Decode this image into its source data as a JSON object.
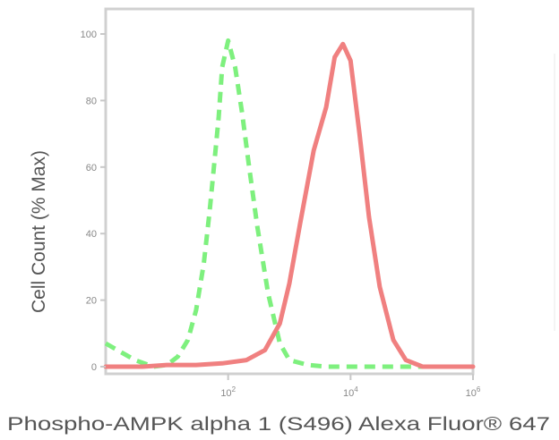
{
  "chart_data": {
    "type": "line",
    "title": "",
    "xlabel": "Phospho-AMPK alpha 1 (S496) Alexa Fluor® 647",
    "ylabel": "Cell Count (% Max)",
    "x_scale": "log",
    "xlim": [
      1,
      1000000
    ],
    "x_tick_labels": [
      "10^2",
      "10^4",
      "10^6"
    ],
    "x_ticks": [
      100,
      10000,
      1000000
    ],
    "ylim": [
      0,
      100
    ],
    "y_ticks": [
      0,
      20,
      40,
      60,
      80,
      100
    ],
    "y_tick_labels": [
      "0",
      "20",
      "40",
      "60",
      "80",
      "100"
    ],
    "grid": false,
    "series": [
      {
        "style": "dashed",
        "color": "#7ef07e",
        "x": [
          1,
          3,
          6,
          10,
          15,
          22,
          30,
          40,
          50,
          60,
          70,
          80,
          100,
          130,
          170,
          220,
          300,
          450,
          700,
          1000,
          2000,
          4000,
          1000000
        ],
        "y": [
          7,
          2,
          0,
          0.5,
          3,
          8,
          17,
          31,
          47,
          62,
          75,
          90,
          98,
          90,
          76,
          60,
          42,
          22,
          7,
          2,
          0.5,
          0,
          0
        ]
      },
      {
        "style": "solid",
        "color": "#f08080",
        "x": [
          1,
          4,
          10,
          30,
          80,
          200,
          400,
          700,
          1000,
          1500,
          2500,
          4000,
          5500,
          7500,
          10000,
          14000,
          20000,
          30000,
          50000,
          80000,
          150000,
          300000,
          1000000
        ],
        "y": [
          0,
          0,
          0.5,
          0.5,
          1,
          2,
          5,
          13,
          25,
          43,
          65,
          78,
          93,
          97,
          92,
          70,
          45,
          24,
          8,
          2,
          0,
          0,
          0
        ]
      }
    ]
  }
}
